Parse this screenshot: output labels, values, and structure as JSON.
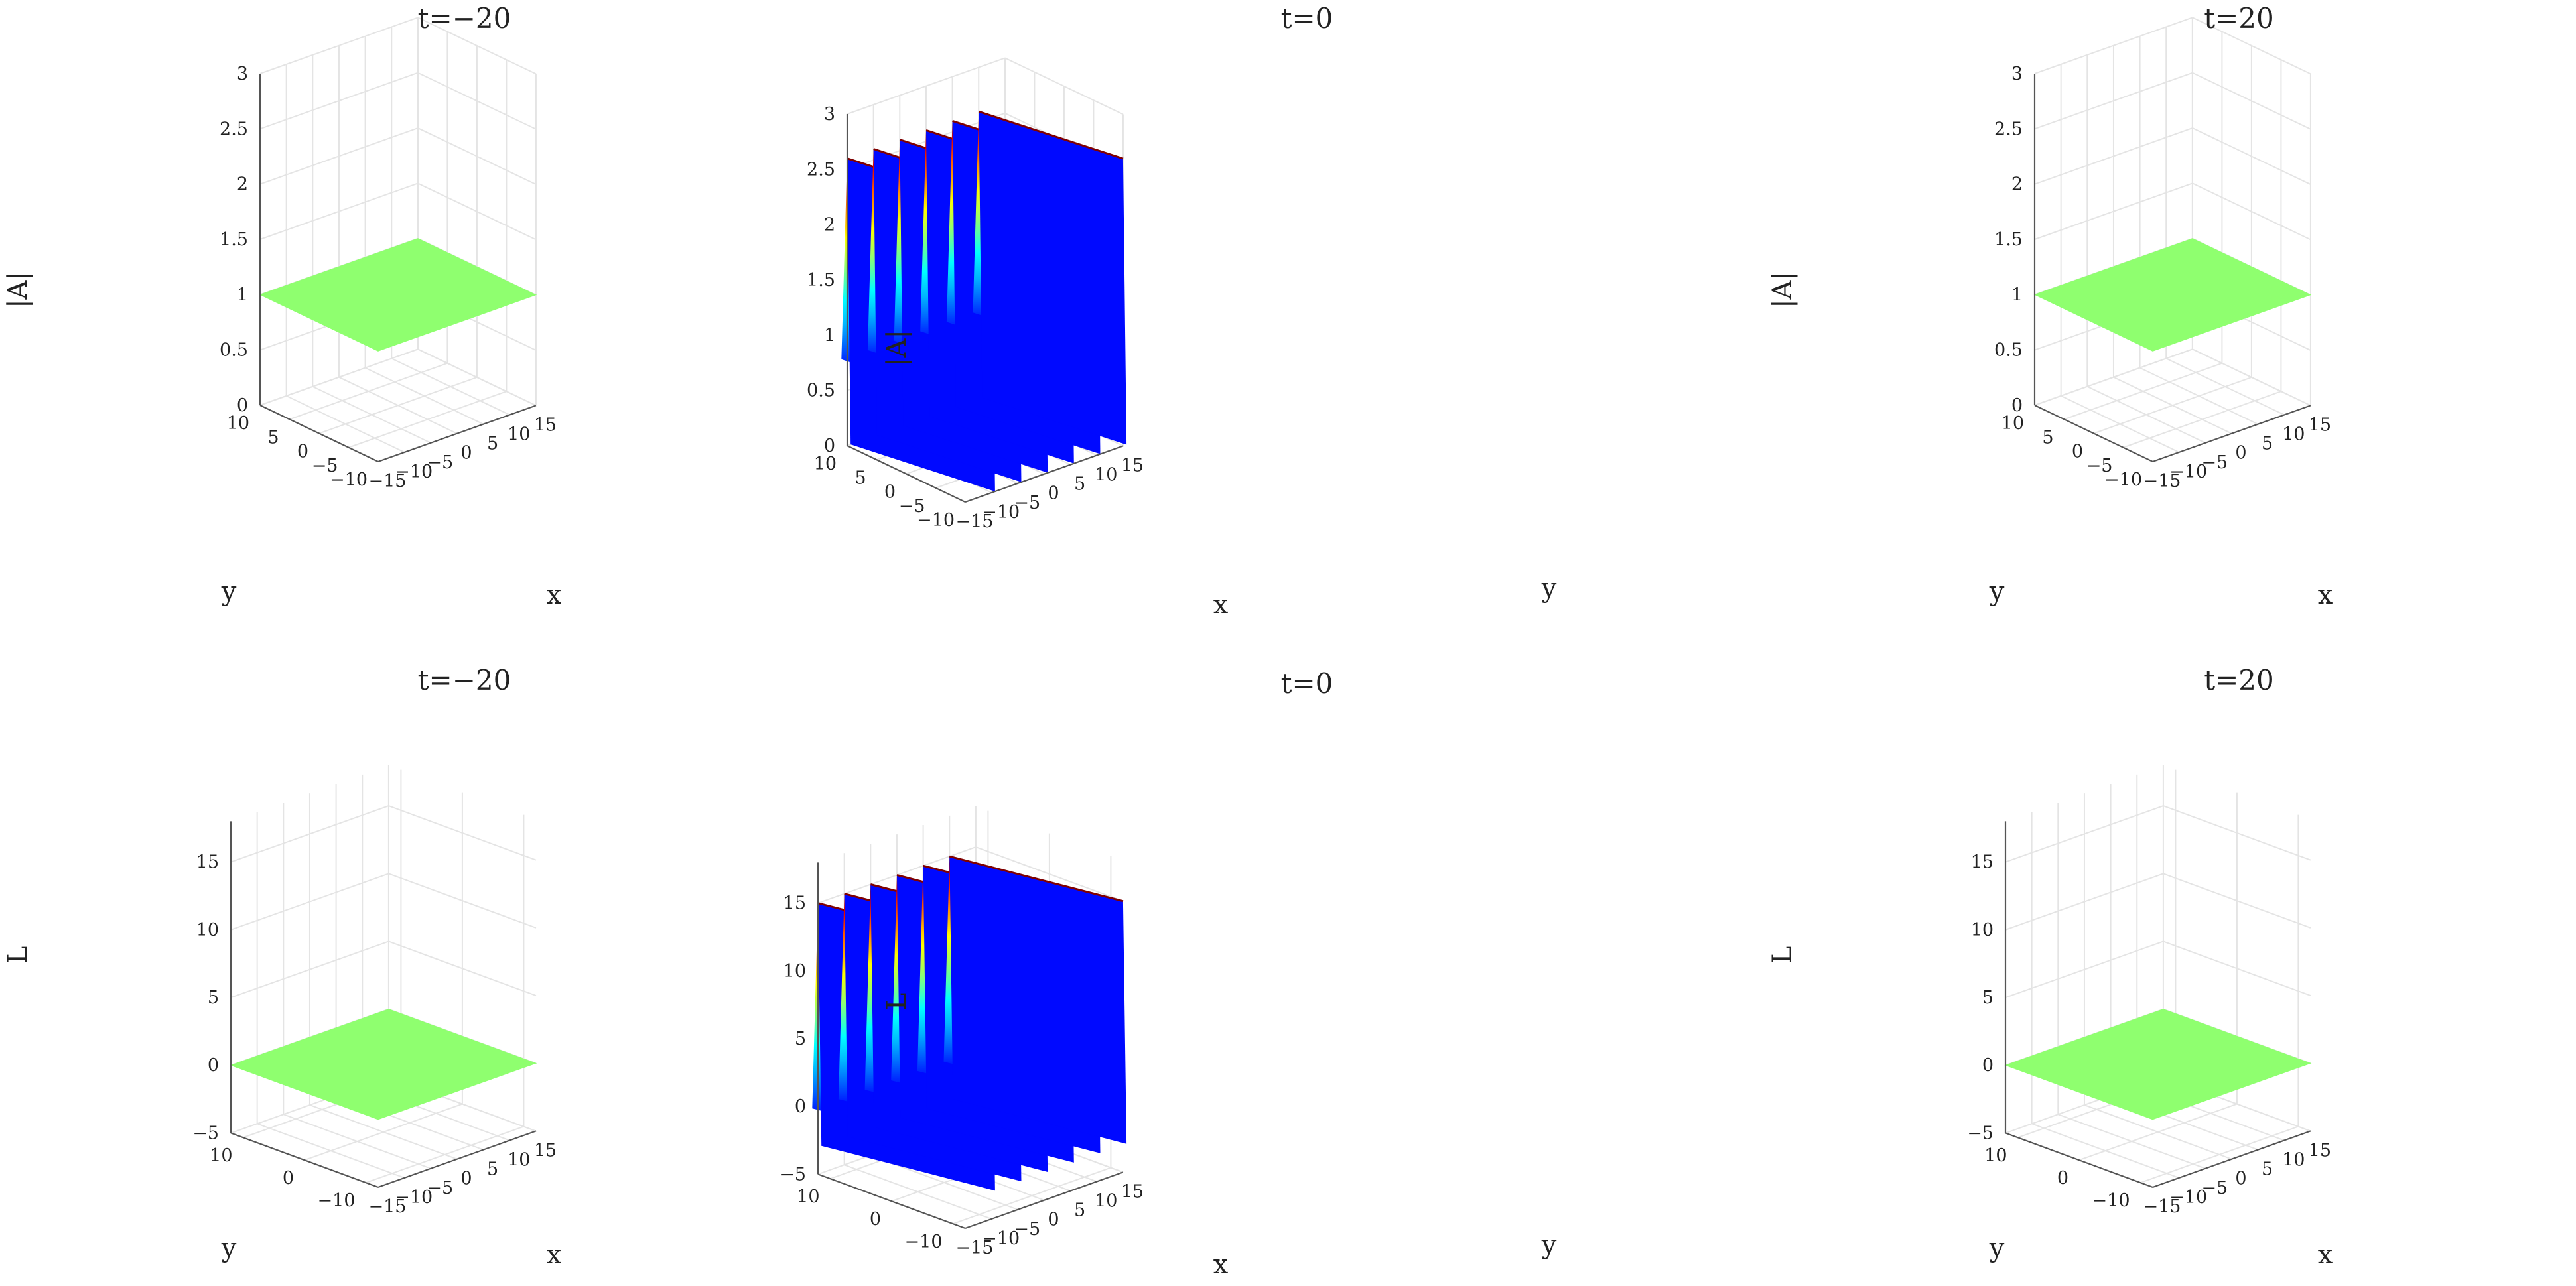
{
  "chart_data": [
    {
      "type": "surface",
      "title": "t=−20",
      "xlabel": "x",
      "ylabel": "y",
      "zlabel": "|A|",
      "xlim": [
        -15,
        15
      ],
      "ylim": [
        -10,
        10
      ],
      "zlim": [
        0,
        3
      ],
      "xticks": [
        "−15",
        "−10",
        "−5",
        "0",
        "5",
        "10",
        "15"
      ],
      "yticks": [
        "−10",
        "−5",
        "0",
        "5",
        "10"
      ],
      "zticks": [
        "0",
        "0.5",
        "1",
        "1.5",
        "2",
        "2.5",
        "3"
      ],
      "surface": {
        "kind": "flat",
        "value": 1
      },
      "colormap": "jet",
      "grid": true
    },
    {
      "type": "surface",
      "title": "t=0",
      "xlabel": "x",
      "ylabel": "y",
      "zlabel": "|A|",
      "xlim": [
        -15,
        15
      ],
      "ylim": [
        -10,
        10
      ],
      "zlim": [
        0,
        3
      ],
      "xticks": [
        "−15",
        "−10",
        "−5",
        "0",
        "5",
        "10",
        "15"
      ],
      "yticks": [
        "−10",
        "−5",
        "0",
        "5",
        "10"
      ],
      "zticks": [
        "0",
        "0.5",
        "1",
        "1.5",
        "2",
        "2.5",
        "3"
      ],
      "surface": {
        "kind": "periodic-ridges",
        "peak": 2.6,
        "baseline": 0.8,
        "trough": 0.0,
        "ridge_count": 6
      },
      "colormap": "jet",
      "grid": true
    },
    {
      "type": "surface",
      "title": "t=20",
      "xlabel": "x",
      "ylabel": "y",
      "zlabel": "|A|",
      "xlim": [
        -15,
        15
      ],
      "ylim": [
        -10,
        10
      ],
      "zlim": [
        0,
        3
      ],
      "xticks": [
        "−15",
        "−10",
        "−5",
        "0",
        "5",
        "10",
        "15"
      ],
      "yticks": [
        "−10",
        "−5",
        "0",
        "5",
        "10"
      ],
      "zticks": [
        "0",
        "0.5",
        "1",
        "1.5",
        "2",
        "2.5",
        "3"
      ],
      "surface": {
        "kind": "flat",
        "value": 1
      },
      "colormap": "jet",
      "grid": true
    },
    {
      "type": "surface",
      "title": "t=−20",
      "xlabel": "x",
      "ylabel": "y",
      "zlabel": "L",
      "xlim": [
        -15,
        15
      ],
      "ylim": [
        -12,
        12
      ],
      "zlim": [
        -5,
        18
      ],
      "xticks": [
        "−15",
        "−10",
        "−5",
        "0",
        "5",
        "10",
        "15"
      ],
      "yticks": [
        "−10",
        "0",
        "10"
      ],
      "zticks": [
        "−5",
        "0",
        "5",
        "10",
        "15"
      ],
      "surface": {
        "kind": "flat",
        "value": 0
      },
      "colormap": "jet",
      "grid": true
    },
    {
      "type": "surface",
      "title": "t=0",
      "xlabel": "x",
      "ylabel": "y",
      "zlabel": "L",
      "xlim": [
        -15,
        15
      ],
      "ylim": [
        -12,
        12
      ],
      "zlim": [
        -5,
        18
      ],
      "xticks": [
        "−15",
        "−10",
        "−5",
        "0",
        "5",
        "10",
        "15"
      ],
      "yticks": [
        "−10",
        "0",
        "10"
      ],
      "zticks": [
        "−5",
        "0",
        "5",
        "10",
        "15"
      ],
      "surface": {
        "kind": "periodic-ridges",
        "peak": 15,
        "baseline": 0,
        "trough": -3,
        "ridge_count": 6
      },
      "colormap": "jet",
      "grid": true
    },
    {
      "type": "surface",
      "title": "t=20",
      "xlabel": "x",
      "ylabel": "y",
      "zlabel": "L",
      "xlim": [
        -15,
        15
      ],
      "ylim": [
        -12,
        12
      ],
      "zlim": [
        -5,
        18
      ],
      "xticks": [
        "−15",
        "−10",
        "−5",
        "0",
        "5",
        "10",
        "15"
      ],
      "yticks": [
        "−10",
        "0",
        "10"
      ],
      "zticks": [
        "−5",
        "0",
        "5",
        "10",
        "15"
      ],
      "surface": {
        "kind": "flat",
        "value": 0
      },
      "colormap": "jet",
      "grid": true
    }
  ],
  "colors": {
    "flat_surface": "#8fff6f",
    "grid": "#e4e4e4",
    "axis": "#555555"
  }
}
